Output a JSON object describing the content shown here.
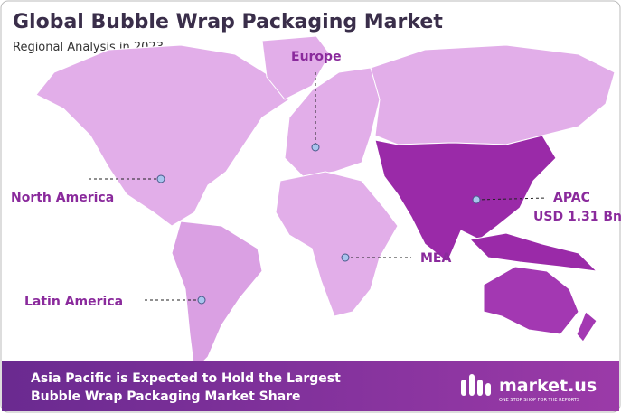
{
  "header": {
    "title": "Global Bubble Wrap Packaging Market",
    "subtitle": "Regional Analysis in 2023"
  },
  "regions": [
    {
      "label": "Europe"
    },
    {
      "label": "North America"
    },
    {
      "label": "APAC",
      "value_label": "USD 1.31 Bn"
    },
    {
      "label": "MEA"
    },
    {
      "label": "Latin America"
    }
  ],
  "footer": {
    "lines": [
      "Asia Pacific is Expected to Hold the Largest",
      "Bubble Wrap Packaging Market Share"
    ],
    "brand": "market.us",
    "tagline": "ONE STOP SHOP FOR THE REPORTS"
  }
}
